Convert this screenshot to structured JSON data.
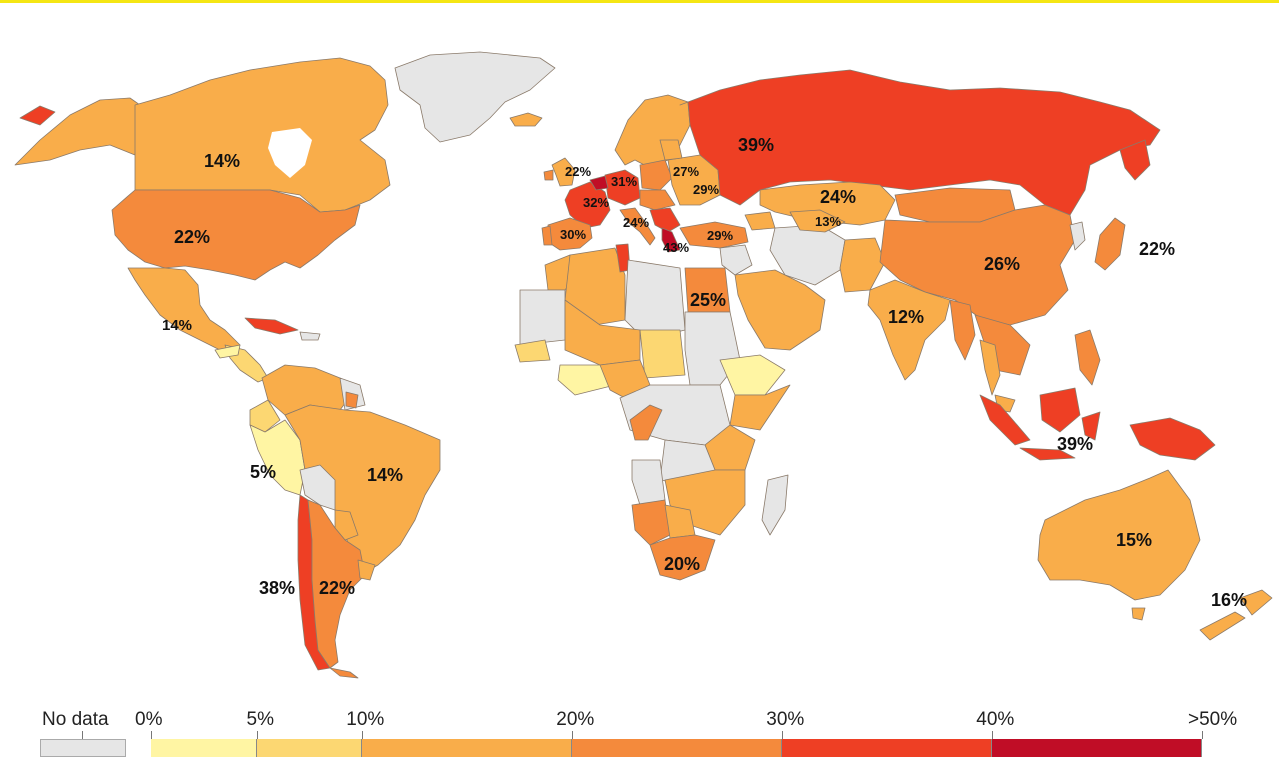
{
  "legend": {
    "no_data_label": "No data",
    "no_data_color": "#e6e6e6",
    "ticks": [
      "0%",
      "5%",
      "10%",
      "20%",
      "30%",
      "40%",
      ">50%"
    ],
    "bins": [
      {
        "from": "0%",
        "to": "5%",
        "color": "#fff5a3"
      },
      {
        "from": "5%",
        "to": "10%",
        "color": "#fcd772"
      },
      {
        "from": "10%",
        "to": "20%",
        "color": "#f9ad4a"
      },
      {
        "from": "20%",
        "to": "30%",
        "color": "#f48a3c"
      },
      {
        "from": "30%",
        "to": "40%",
        "color": "#ee3f24"
      },
      {
        "from": "40%",
        "to": ">50%",
        "color": "#c00d26"
      }
    ]
  },
  "colors": {
    "no_data": "#e6e6e6",
    "bin_0_5": "#fff5a3",
    "bin_5_10": "#fcd772",
    "bin_10_20": "#f9ad4a",
    "bin_20_30": "#f48a3c",
    "bin_30_40": "#ee3f24",
    "bin_40_50": "#c00d26",
    "border": "#8a7a6a"
  },
  "labels": {
    "canada": "14%",
    "usa": "22%",
    "mexico": "14%",
    "peru": "5%",
    "brazil": "14%",
    "chile": "38%",
    "argentina": "22%",
    "uk": "22%",
    "germany": "31%",
    "france": "32%",
    "poland": "27%",
    "ukraine": "29%",
    "italy": "24%",
    "spain": "30%",
    "greece": "43%",
    "turkey": "29%",
    "russia": "39%",
    "kazakhstan": "24%",
    "uzbekistan": "13%",
    "china": "26%",
    "japan": "22%",
    "india": "12%",
    "egypt": "25%",
    "indonesia": "39%",
    "south_africa": "20%",
    "australia": "15%",
    "new_zealand": "16%"
  }
}
